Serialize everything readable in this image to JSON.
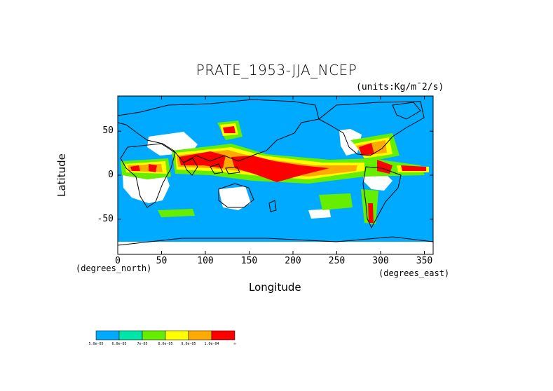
{
  "title": "PRATE_1953-JJA_NCEP",
  "units": "(units:Kg/m¯2/s)",
  "xaxis": {
    "label": "Longitude",
    "unit": "(degrees_east)",
    "ticks": [
      "0",
      "50",
      "100",
      "150",
      "200",
      "250",
      "300",
      "350"
    ]
  },
  "yaxis": {
    "label": "Latitude",
    "unit": "(degrees_north)",
    "ticks": [
      "50",
      "0",
      "-50"
    ]
  },
  "colorbar": {
    "labels": [
      "5.0e-05",
      "6.0e-05",
      "7e-05",
      "8.0e-05",
      "9.0e-05",
      "1.0e-04",
      "∞"
    ],
    "colors": [
      "#00aaff",
      "#00e6a8",
      "#66ee00",
      "#ffff00",
      "#ffaa00",
      "#ff0000"
    ]
  },
  "background_color": "#00aaff",
  "land_outline_color": "#000000",
  "chart_data": {
    "type": "heatmap",
    "title": "PRATE_1953-JJA_NCEP",
    "xlabel": "Longitude",
    "ylabel": "Latitude",
    "xlim": [
      0,
      360
    ],
    "ylim": [
      -90,
      90
    ],
    "x_ticks": [
      0,
      50,
      100,
      150,
      200,
      250,
      300,
      350
    ],
    "y_ticks": [
      -50,
      0,
      50
    ],
    "levels": [
      5e-05,
      6e-05,
      7e-05,
      8e-05,
      9e-05,
      0.0001
    ]
  }
}
